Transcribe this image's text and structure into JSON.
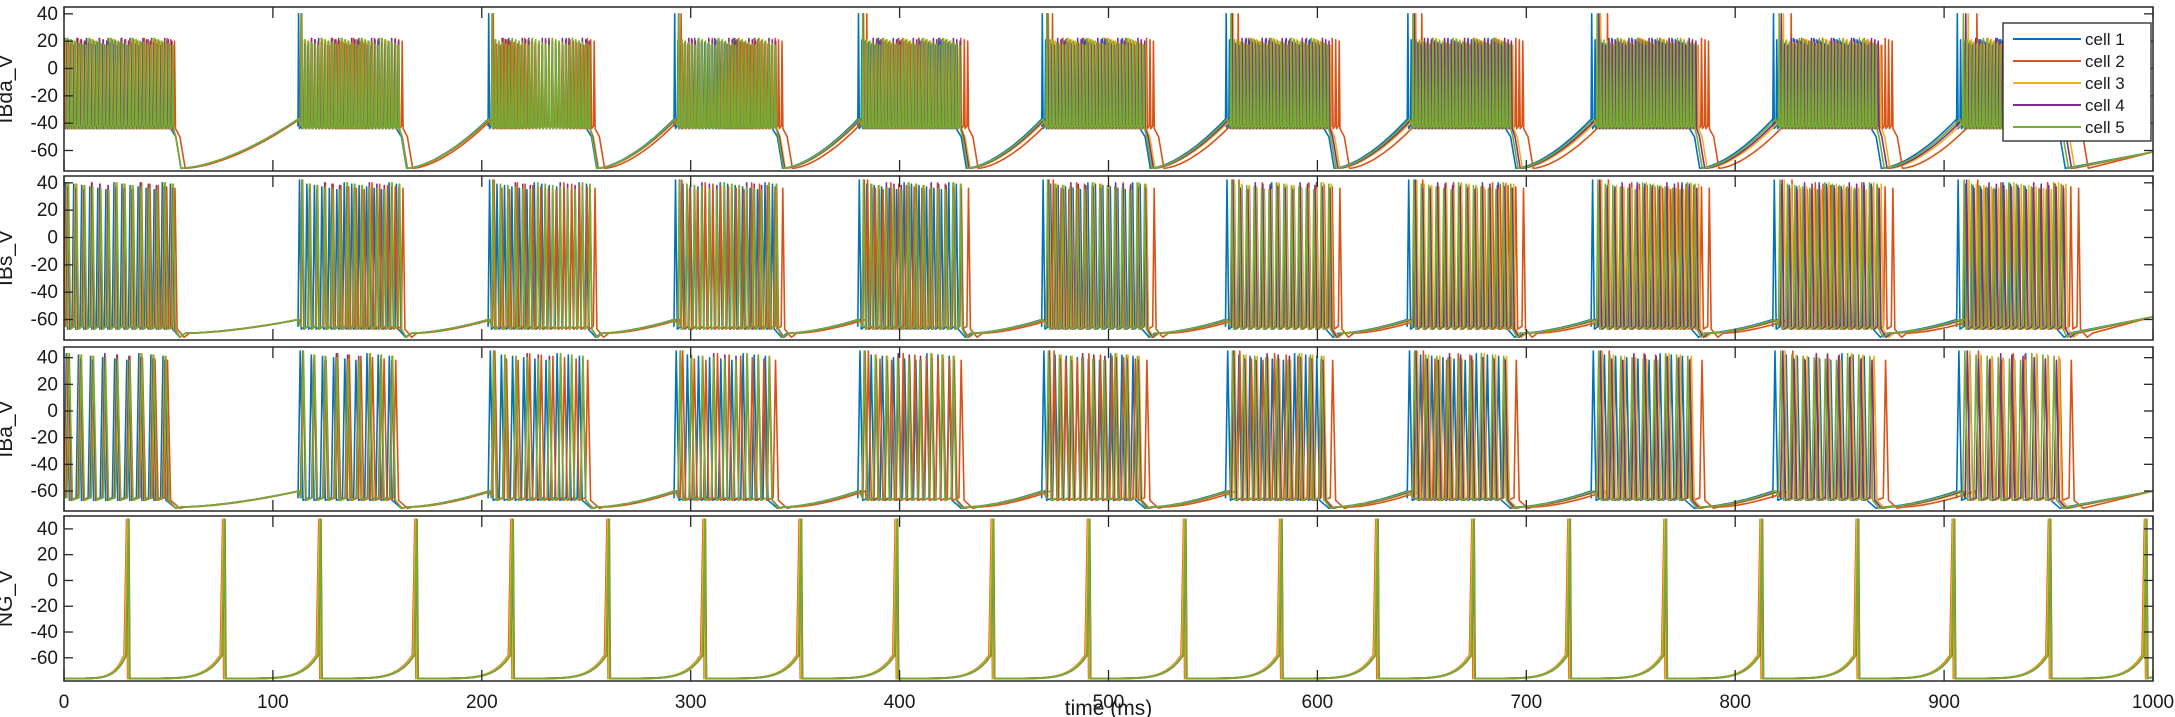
{
  "chart_data": {
    "type": "line",
    "xlabel": "time (ms)",
    "xlim": [
      0,
      1000
    ],
    "xticks": [
      0,
      100,
      200,
      300,
      400,
      500,
      600,
      700,
      800,
      900,
      1000
    ],
    "legend": {
      "placement": "top-right of first panel",
      "entries": [
        "cell 1",
        "cell 2",
        "cell 3",
        "cell 4",
        "cell 5"
      ]
    },
    "series_colors": [
      "#0072BD",
      "#D95319",
      "#EDB120",
      "#7E2F8E",
      "#77AC30"
    ],
    "panels": [
      {
        "ylabel": "IBda_V",
        "ylim": [
          -75,
          45
        ],
        "yticks": [
          -60,
          -40,
          -20,
          0,
          20,
          40
        ],
        "burst_onsets_ms": [
          0,
          112,
          203,
          292,
          380,
          468,
          556,
          643,
          731,
          818,
          906
        ],
        "burst_duration_ms": 52,
        "spike_peak_mV": 40,
        "trough_mV": -73
      },
      {
        "ylabel": "IBs_V",
        "ylim": [
          -75,
          45
        ],
        "yticks": [
          -60,
          -40,
          -20,
          0,
          20,
          40
        ],
        "burst_onsets_ms": [
          0,
          112,
          203,
          292,
          380,
          468,
          556,
          643,
          731,
          818,
          906
        ],
        "burst_duration_ms": 54,
        "spike_peak_mV": 42,
        "trough_mV": -70
      },
      {
        "ylabel": "IBa_V",
        "ylim": [
          -75,
          48
        ],
        "yticks": [
          -60,
          -40,
          -20,
          0,
          20,
          40
        ],
        "burst_onsets_ms": [
          0,
          112,
          203,
          292,
          380,
          468,
          556,
          643,
          731,
          818,
          906
        ],
        "burst_duration_ms": 52,
        "spike_peak_mV": 45,
        "trough_mV": -72
      },
      {
        "ylabel": "NG_V",
        "ylim": [
          -78,
          50
        ],
        "yticks": [
          -60,
          -40,
          -20,
          0,
          20,
          40
        ],
        "spike_times_ms": [
          30,
          76,
          122,
          168,
          214,
          260,
          306,
          352,
          398,
          444,
          490,
          536,
          582,
          628,
          674,
          720,
          766,
          812,
          858,
          904,
          950,
          996
        ],
        "spike_peak_mV": 48,
        "trough_mV": -76
      }
    ]
  }
}
